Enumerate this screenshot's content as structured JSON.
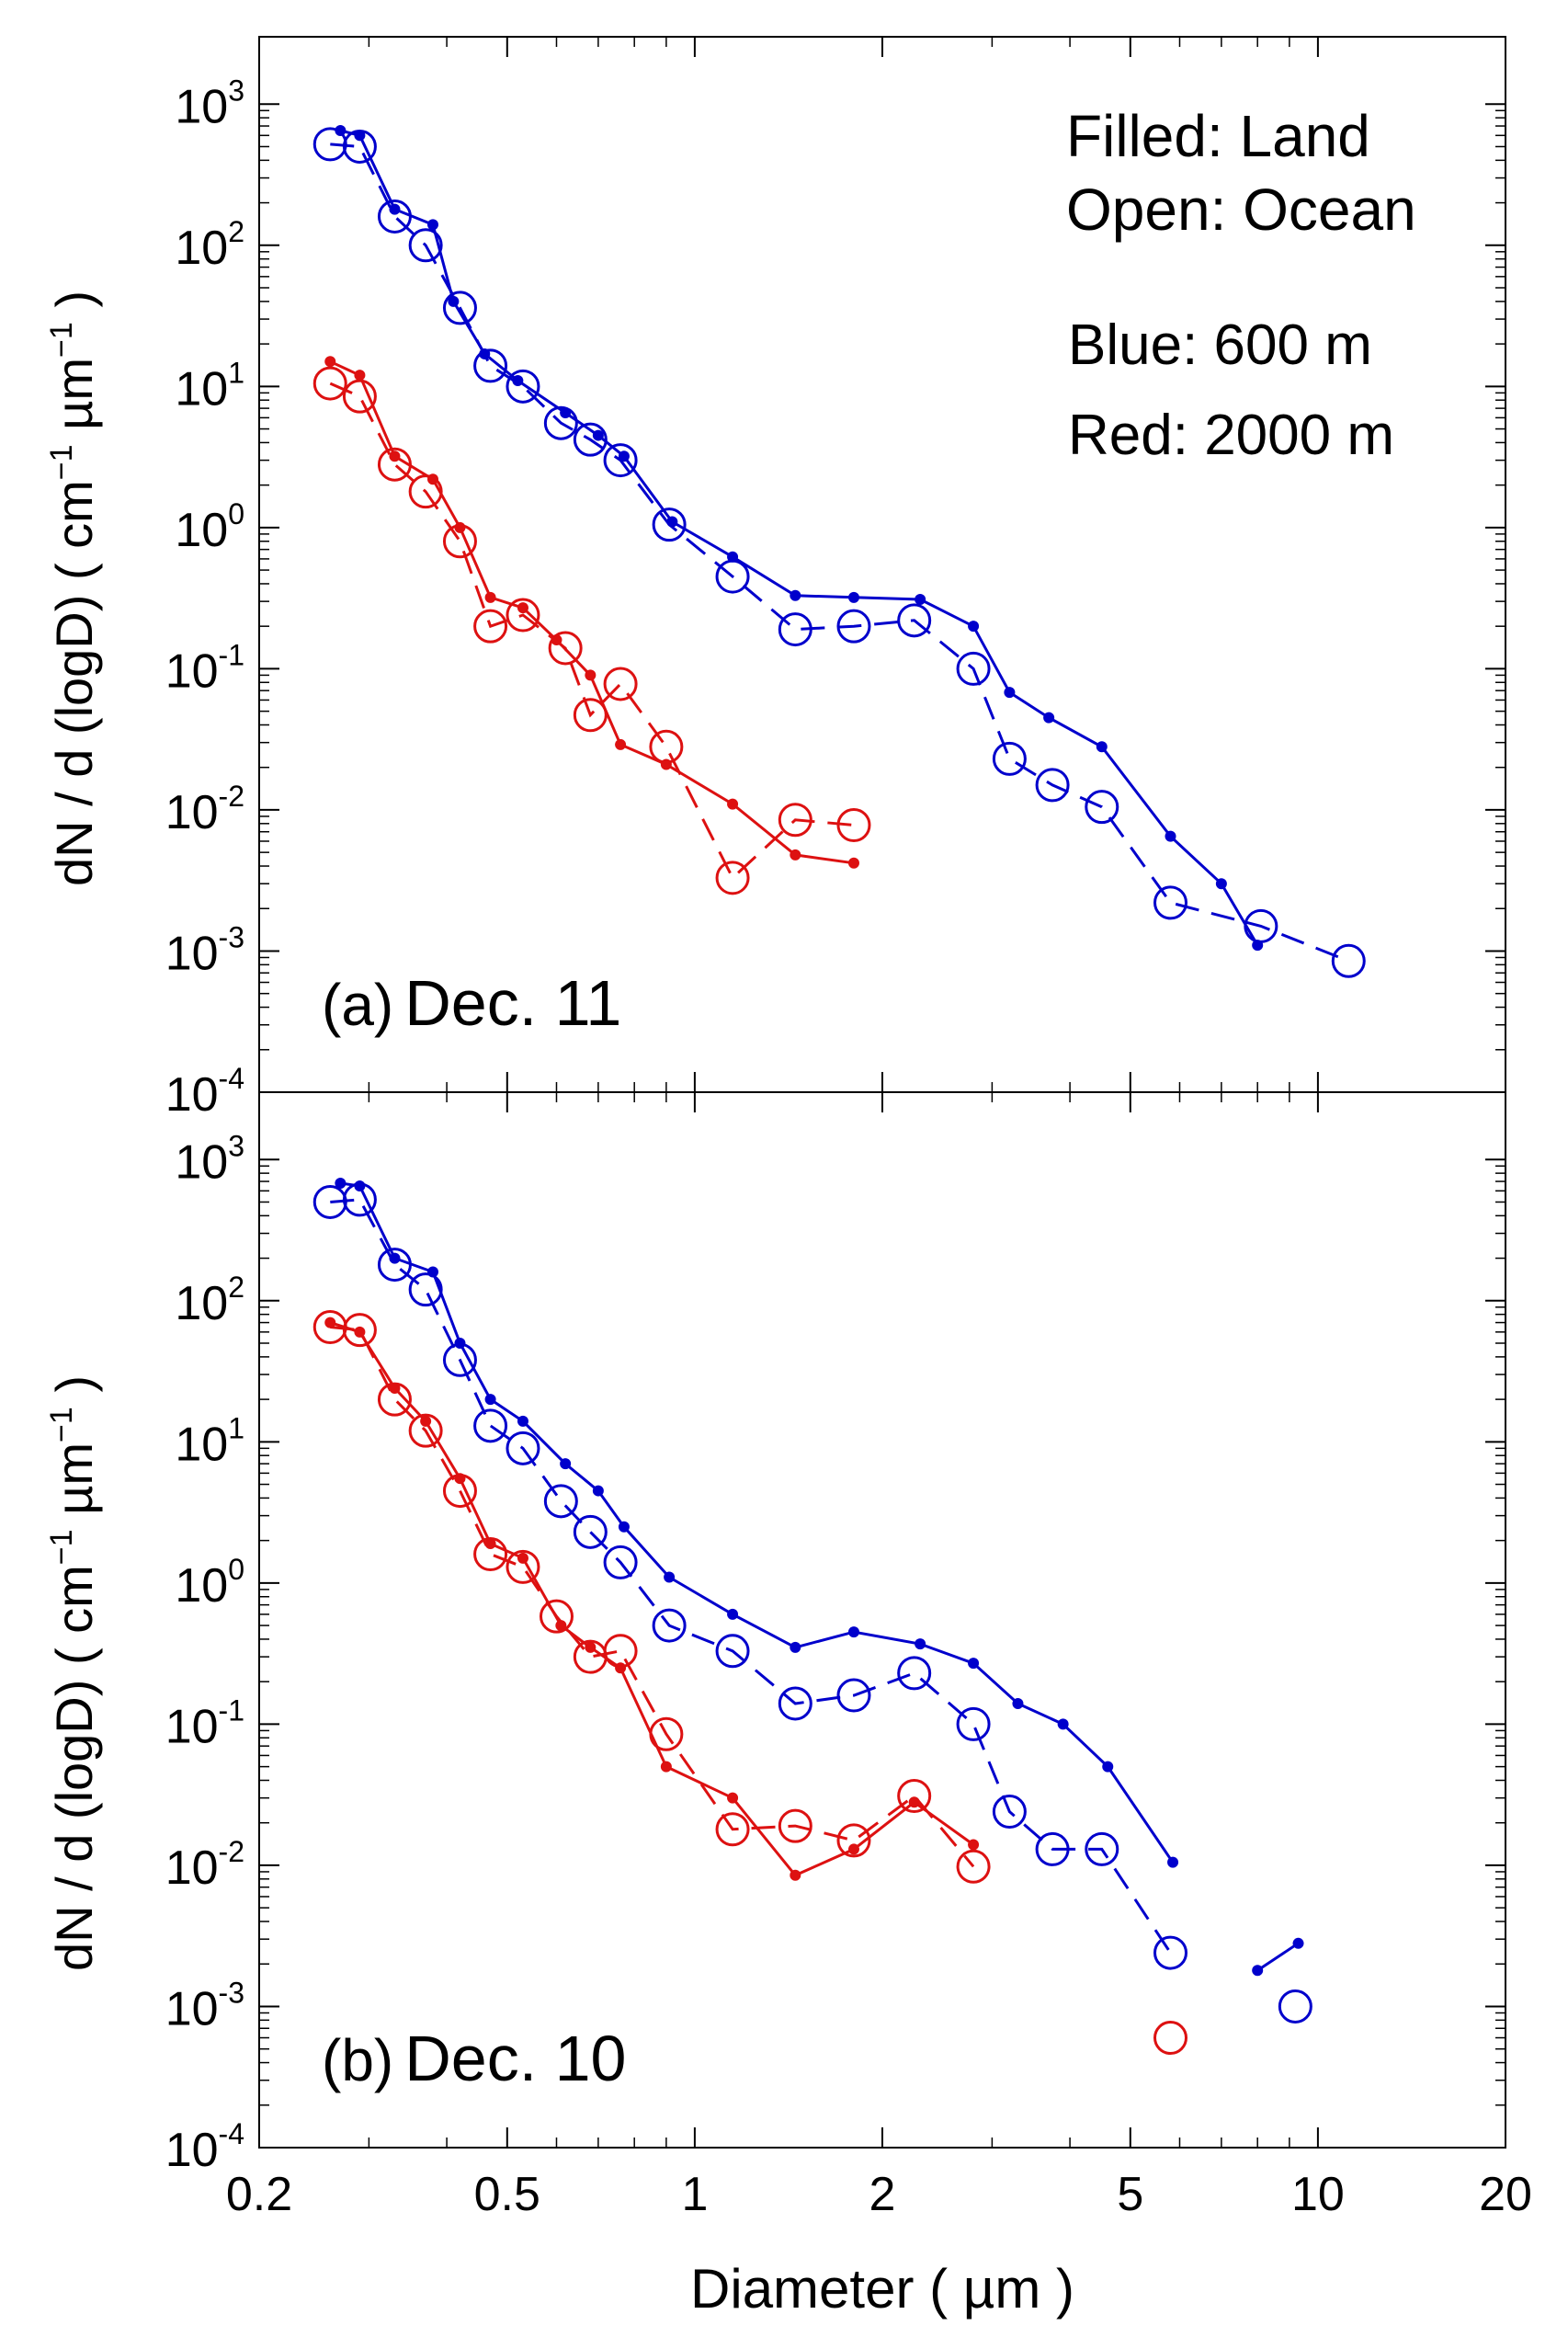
{
  "figure": {
    "xlabel_prefix": "Diameter ( ",
    "xlabel_unit": "µm",
    "xlabel_suffix": " )",
    "ylabel_main": "dN / d (logD) ( cm",
    "ylabel_mid": " µm",
    "ylabel_end": " )",
    "ylabel_exp": "−1",
    "x_ticks": [
      0.2,
      0.5,
      1,
      2,
      5,
      10,
      20
    ],
    "x_tick_labels": [
      "0.2",
      "0.5",
      "1",
      "2",
      "5",
      "10",
      "20"
    ],
    "y_tick_exponents": [
      "-4",
      "-3",
      "-2",
      "-1",
      "0",
      "1",
      "2",
      "3"
    ],
    "y_tick_base": "10",
    "colors": {
      "blue": "#0000cc",
      "red": "#dd1111",
      "axis": "#000000"
    }
  },
  "legend": {
    "filled": "Filled: Land",
    "open": "Open: Ocean",
    "blue": "Blue: 600 m",
    "red": "Red: 2000 m"
  },
  "chart_data": [
    {
      "type": "line",
      "panel_label": "(a)",
      "panel_date": "Dec. 11",
      "xlim": [
        0.2,
        20
      ],
      "ylim": [
        0.0001,
        3000
      ],
      "xscale": "log",
      "yscale": "log",
      "series": [
        {
          "name": "Blue: 600 m, Land",
          "color": "blue",
          "marker": "filled",
          "dash": "solid",
          "x": [
            0.27,
            0.29,
            0.33,
            0.38,
            0.41,
            0.46,
            0.52,
            0.62,
            0.7,
            0.77,
            0.92,
            1.15,
            1.45,
            1.8,
            2.3,
            2.8,
            3.2,
            3.7,
            4.5,
            5.8,
            7.0,
            8.0
          ],
          "y": [
            650,
            600,
            180,
            140,
            40,
            17,
            11,
            6.5,
            4.5,
            3.2,
            1.1,
            0.62,
            0.33,
            0.32,
            0.31,
            0.2,
            0.068,
            0.045,
            0.028,
            0.0065,
            0.003,
            0.0011
          ]
        },
        {
          "name": "Blue: 600 m, Ocean",
          "color": "blue",
          "marker": "open",
          "dash": "dashed",
          "x": [
            0.26,
            0.29,
            0.33,
            0.37,
            0.42,
            0.47,
            0.53,
            0.61,
            0.68,
            0.76,
            0.91,
            1.15,
            1.45,
            1.8,
            2.25,
            2.8,
            3.2,
            3.75,
            4.5,
            5.8,
            8.1,
            11.2
          ],
          "y": [
            520,
            500,
            160,
            100,
            36,
            14,
            10,
            5.5,
            4.2,
            3.0,
            1.05,
            0.45,
            0.19,
            0.2,
            0.22,
            0.1,
            0.023,
            0.015,
            0.0105,
            0.0022,
            0.0015,
            0.00085
          ]
        },
        {
          "name": "Red: 2000 m, Land",
          "color": "red",
          "marker": "filled",
          "dash": "solid",
          "x": [
            0.26,
            0.29,
            0.33,
            0.38,
            0.42,
            0.47,
            0.53,
            0.6,
            0.68,
            0.76,
            0.9,
            1.15,
            1.45,
            1.8
          ],
          "y": [
            15,
            12,
            3.2,
            2.2,
            1.0,
            0.32,
            0.27,
            0.16,
            0.09,
            0.029,
            0.021,
            0.011,
            0.0048,
            0.0042
          ]
        },
        {
          "name": "Red: 2000 m, Ocean",
          "color": "red",
          "marker": "open",
          "dash": "dashed",
          "x": [
            0.26,
            0.29,
            0.33,
            0.37,
            0.42,
            0.47,
            0.53,
            0.62,
            0.68,
            0.76,
            0.9,
            1.15,
            1.45,
            1.8
          ],
          "y": [
            10.5,
            8.5,
            2.8,
            1.8,
            0.8,
            0.2,
            0.24,
            0.14,
            0.047,
            0.078,
            0.028,
            0.0033,
            0.0085,
            0.0078
          ]
        }
      ]
    },
    {
      "type": "line",
      "panel_label": "(b)",
      "panel_date": "Dec. 10",
      "xlim": [
        0.2,
        20
      ],
      "ylim": [
        0.0001,
        3000
      ],
      "xscale": "log",
      "yscale": "log",
      "series": [
        {
          "name": "Blue: 600 m, Land",
          "color": "blue",
          "marker": "filled",
          "dash": "solid",
          "x": [
            0.27,
            0.29,
            0.33,
            0.38,
            0.42,
            0.47,
            0.53,
            0.62,
            0.7,
            0.77,
            0.91,
            1.15,
            1.45,
            1.8,
            2.3,
            2.8,
            3.3,
            3.9,
            4.6,
            5.85
          ],
          "y": [
            680,
            650,
            200,
            160,
            50,
            20,
            14,
            7.0,
            4.5,
            2.5,
            1.1,
            0.6,
            0.35,
            0.45,
            0.37,
            0.27,
            0.14,
            0.1,
            0.05,
            0.0105
          ]
        },
        {
          "name": "Blue: 600 m, Land (isolated pair)",
          "color": "blue",
          "marker": "filled",
          "dash": "solid",
          "x": [
            8.0,
            9.3
          ],
          "y": [
            0.0018,
            0.0028
          ]
        },
        {
          "name": "Blue: 600 m, Ocean",
          "color": "blue",
          "marker": "open",
          "dash": "dashed",
          "x": [
            0.26,
            0.29,
            0.33,
            0.37,
            0.42,
            0.47,
            0.53,
            0.61,
            0.68,
            0.76,
            0.91,
            1.15,
            1.45,
            1.8,
            2.25,
            2.8,
            3.2,
            3.75,
            4.5,
            5.8,
            9.2
          ],
          "y": [
            500,
            520,
            180,
            120,
            38,
            13,
            9,
            3.8,
            2.3,
            1.4,
            0.5,
            0.33,
            0.14,
            0.16,
            0.23,
            0.1,
            0.024,
            0.013,
            0.013,
            0.0024,
            0.001
          ]
        },
        {
          "name": "Red: 2000 m, Land",
          "color": "red",
          "marker": "filled",
          "dash": "solid",
          "x": [
            0.26,
            0.29,
            0.33,
            0.37,
            0.42,
            0.47,
            0.53,
            0.61,
            0.68,
            0.76,
            0.9,
            1.15,
            1.45,
            1.8,
            2.25,
            2.8
          ],
          "y": [
            70,
            60,
            24,
            14,
            5.5,
            1.9,
            1.5,
            0.5,
            0.35,
            0.25,
            0.05,
            0.03,
            0.0085,
            0.013,
            0.028,
            0.014
          ]
        },
        {
          "name": "Red: 2000 m, Ocean",
          "color": "red",
          "marker": "open",
          "dash": "dashed",
          "x": [
            0.26,
            0.29,
            0.33,
            0.37,
            0.42,
            0.47,
            0.53,
            0.6,
            0.68,
            0.76,
            0.9,
            1.15,
            1.45,
            1.8,
            2.25,
            2.8,
            5.8
          ],
          "y": [
            65,
            62,
            20,
            12,
            4.5,
            1.6,
            1.3,
            0.58,
            0.3,
            0.33,
            0.085,
            0.018,
            0.019,
            0.015,
            0.031,
            0.0098,
            0.0006
          ]
        }
      ]
    }
  ]
}
